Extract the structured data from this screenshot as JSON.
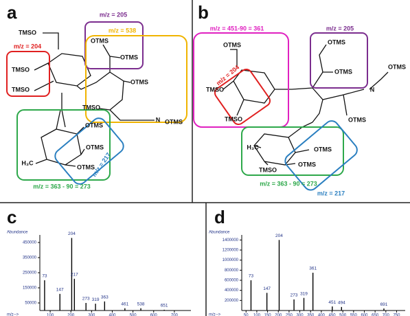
{
  "panel_a": {
    "letter": "a",
    "labels": [
      "m/z = 205",
      "m/z = 538",
      "m/z = 204",
      "m/z = 363 - 90 = 273",
      "m/z = 217"
    ],
    "groups": [
      "TMSO",
      "TMSO",
      "TMSO",
      "OTMS",
      "OTMS",
      "OTMS",
      "TMSO",
      "N",
      "OTMS",
      "OTMS",
      "OTMS",
      "H₃C",
      "OTMS"
    ]
  },
  "panel_b": {
    "letter": "b",
    "labels": [
      "m/z = 451-90 = 361",
      "m/z = 205",
      "m/z = 204",
      "m/z = 363 - 90 = 273",
      "m/z = 217"
    ],
    "groups": [
      "OTMS",
      "TMSO",
      "TMSO",
      "OTMS",
      "OTMS",
      "N",
      "OTMS",
      "OTMS",
      "OTMS",
      "H₃C",
      "TMSO",
      "OTMS"
    ]
  },
  "chart_data": [
    {
      "type": "bar",
      "letter": "c",
      "y_label": "Abundance",
      "x_label": "m/z-->",
      "x": [
        73,
        147,
        204,
        217,
        273,
        319,
        363,
        461,
        538,
        651
      ],
      "values": [
        200000,
        110000,
        480000,
        210000,
        50000,
        45000,
        60000,
        15000,
        15000,
        5000
      ],
      "xlim": [
        50,
        780
      ],
      "ylim": [
        0,
        500000
      ],
      "xticks": [
        100,
        200,
        300,
        400,
        500,
        600,
        700
      ],
      "yticks": [
        50000,
        150000,
        250000,
        350000,
        450000
      ],
      "color": "#000000"
    },
    {
      "type": "bar",
      "letter": "d",
      "y_label": "Abundance",
      "x_label": "m/z-->",
      "x": [
        73,
        147,
        204,
        273,
        319,
        361,
        451,
        494,
        691
      ],
      "values": [
        600000,
        350000,
        1400000,
        220000,
        250000,
        750000,
        80000,
        70000,
        40000
      ],
      "xlim": [
        30,
        790
      ],
      "ylim": [
        0,
        1500000
      ],
      "xticks": [
        50,
        100,
        150,
        200,
        250,
        300,
        350,
        400,
        450,
        500,
        550,
        600,
        650,
        700,
        750
      ],
      "yticks": [
        200000,
        400000,
        600000,
        800000,
        1000000,
        1200000,
        1400000
      ],
      "color": "#000000"
    }
  ]
}
